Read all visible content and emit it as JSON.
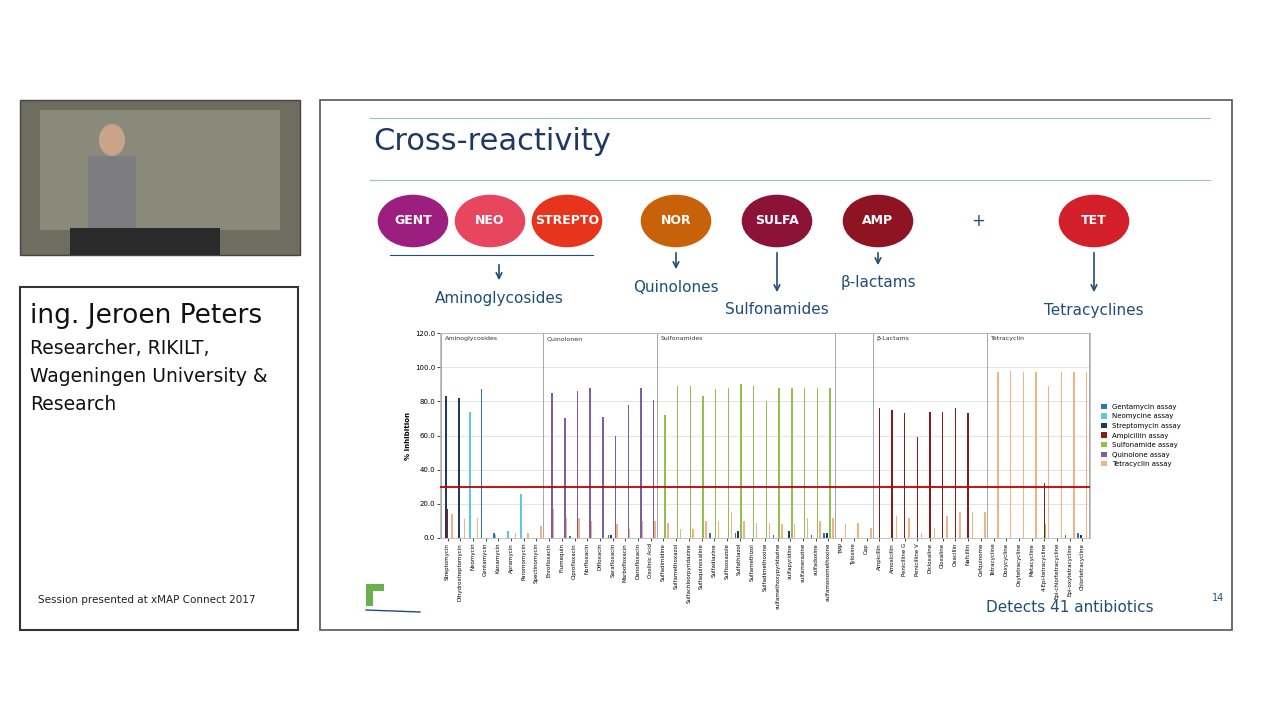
{
  "speaker": {
    "name": "ing. Jeroen Peters",
    "affiliation_lines": [
      "Researcher, RIKILT,",
      "Wageningen University &",
      "Research"
    ],
    "session": "Session presented at xMAP Connect 2017"
  },
  "slide": {
    "title": "Cross-reactivity",
    "assays": [
      {
        "label": "GENT",
        "color": "#9c1f80"
      },
      {
        "label": "NEO",
        "color": "#e8455e"
      },
      {
        "label": "STREPTO",
        "color": "#e8341c"
      },
      {
        "label": "NOR",
        "color": "#c8620a"
      },
      {
        "label": "SULFA",
        "color": "#8c1238"
      },
      {
        "label": "AMP",
        "color": "#8e1424"
      },
      {
        "label": "TET",
        "color": "#d21f2a"
      }
    ],
    "plus": "+",
    "classes": [
      {
        "label": "Aminoglycosides",
        "assays": [
          "GENT",
          "NEO",
          "STREPTO"
        ]
      },
      {
        "label": "Quinolones",
        "assays": [
          "NOR"
        ]
      },
      {
        "label": "Sulfonamides",
        "assays": [
          "SULFA"
        ]
      },
      {
        "label": "β-lactams",
        "assays": [
          "AMP"
        ]
      },
      {
        "label": "Tetracyclines",
        "assays": [
          "TET"
        ]
      }
    ],
    "footer": "Detects 41 antibiotics",
    "page": 14
  },
  "chart_data": {
    "type": "bar",
    "y_label": "% Inhibition",
    "categories": [
      "Streptomycin",
      "Dihydrostreptomycin",
      "Neomycin",
      "Gentamycin",
      "Kanamycin",
      "Apramycin",
      "Paromomycin",
      "Spectinomycin",
      "Enrofloxacin",
      "Flumequin",
      "Ciprofloxacin",
      "Norfloxacin",
      "Difloxacin",
      "Sarafloxacin",
      "Marbofloxacin",
      "Danofloxacin",
      "Oxolinic Acid",
      "Sulfadimidine",
      "Sulfamethoxazol",
      "Sulfachloorpyridazine",
      "Sulfaquinoxaline",
      "Sulfadiazine",
      "Sulfisoxazole",
      "Sulfathiazol",
      "Sulfamethizol",
      "Sulfadimethoxine",
      "sulfamethoxypyridazine",
      "sulfapyridine",
      "sulfamerazine",
      "sulfadoxine",
      "sulfamonomethoxine",
      "TMP",
      "Tylosine",
      "Cap",
      "Ampicillin",
      "Amoxicillin",
      "Penicilline G",
      "Penicilline V",
      "Dicloxaline",
      "Cloxaline",
      "Oxacillin",
      "Nafcillin",
      "Cefquinome",
      "Tetracycline",
      "Doxycycline",
      "Oxytetracycline",
      "Metacycline",
      "4-Epi-tetracycline",
      "Epi-chlortetracycline",
      "Epi-oxytetracycline",
      "Chlortetracycline"
    ],
    "groups": [
      {
        "label": "Aminoglycosides",
        "from": "Streptomycin",
        "to": "Spectinomycin"
      },
      {
        "label": "Quinolonen",
        "from": "Enrofloxacin",
        "to": "Oxolinic Acid"
      },
      {
        "label": "Sulfonamides",
        "from": "Sulfadimidine",
        "to": "sulfamonomethoxine"
      },
      {
        "label": "β-Lactams",
        "from": "Ampicillin",
        "to": "Cefquinome"
      },
      {
        "label": "Tetracyclin",
        "from": "Tetracycline",
        "to": "Chlortetracycline"
      }
    ],
    "series": [
      {
        "name": "Gentamycin assay",
        "color": "#2e75b6",
        "values": [
          0,
          0,
          0,
          87,
          3,
          0,
          0,
          0,
          0,
          0,
          1,
          0,
          0,
          2,
          0,
          0,
          0,
          0,
          0,
          0,
          0,
          3,
          0,
          3,
          0,
          0,
          2,
          0,
          0,
          2,
          3,
          0,
          0,
          0,
          0,
          0,
          0,
          0,
          0,
          0,
          0,
          0,
          0,
          0,
          0,
          0,
          0,
          0,
          0,
          2,
          3
        ]
      },
      {
        "name": "Neomycine assay",
        "color": "#5bc8e8",
        "values": [
          0,
          0,
          74,
          0,
          2,
          4,
          26,
          0,
          0,
          0,
          0,
          0,
          0,
          0,
          0,
          0,
          0,
          0,
          0,
          0,
          0,
          0,
          0,
          0,
          0,
          0,
          0,
          0,
          0,
          0,
          0,
          0,
          0,
          0,
          0,
          0,
          0,
          0,
          0,
          0,
          0,
          0,
          0,
          0,
          0,
          0,
          0,
          0,
          0,
          0,
          0
        ]
      },
      {
        "name": "Streptomycin assay",
        "color": "#1f3864",
        "values": [
          83,
          82,
          0,
          0,
          0,
          0,
          0,
          0,
          0,
          0,
          0,
          0,
          0,
          2,
          0,
          0,
          0,
          0,
          0,
          0,
          0,
          0,
          0,
          4,
          0,
          0,
          0,
          4,
          0,
          0,
          3,
          0,
          0,
          0,
          0,
          0,
          0,
          0,
          0,
          0,
          0,
          0,
          0,
          0,
          0,
          0,
          0,
          0,
          0,
          0,
          2
        ]
      },
      {
        "name": "Ampicillin assay",
        "color": "#8b1a1a",
        "values": [
          17,
          0,
          0,
          0,
          0,
          0,
          0,
          0,
          0,
          0,
          0,
          0,
          0,
          0,
          0,
          0,
          0,
          0,
          0,
          0,
          0,
          0,
          0,
          0,
          0,
          0,
          0,
          0,
          0,
          0,
          0,
          0,
          0,
          0,
          76,
          75,
          73,
          59,
          74,
          74,
          76,
          73,
          0,
          0,
          0,
          0,
          0,
          32,
          0,
          0,
          0
        ]
      },
      {
        "name": "Sulfonamide assay",
        "color": "#92c050",
        "values": [
          0,
          0,
          0,
          0,
          0,
          0,
          0,
          0,
          0,
          0,
          0,
          0,
          0,
          0,
          0,
          0,
          0,
          72,
          89,
          89,
          83,
          87,
          88,
          90,
          89,
          80,
          88,
          88,
          88,
          88,
          88,
          0,
          0,
          0,
          0,
          0,
          0,
          0,
          0,
          0,
          0,
          0,
          0,
          0,
          0,
          0,
          0,
          8,
          0,
          0,
          0
        ]
      },
      {
        "name": "Quinolone assay",
        "color": "#7b5ea7",
        "values": [
          0,
          0,
          0,
          0,
          0,
          0,
          0,
          0,
          85,
          70,
          86,
          88,
          71,
          60,
          78,
          88,
          81,
          0,
          0,
          0,
          0,
          0,
          0,
          0,
          0,
          0,
          0,
          0,
          0,
          0,
          0,
          0,
          0,
          0,
          0,
          0,
          0,
          0,
          0,
          0,
          0,
          0,
          0,
          0,
          0,
          0,
          0,
          0,
          0,
          0,
          0
        ]
      },
      {
        "name": "Tetracyclin assay",
        "color": "#f4b183",
        "values": [
          14,
          11,
          12,
          0,
          0,
          3,
          3,
          7,
          17,
          12,
          12,
          10,
          0,
          8,
          5,
          10,
          10,
          9,
          5,
          5,
          10,
          10,
          15,
          10,
          9,
          9,
          8,
          8,
          12,
          10,
          12,
          8,
          9,
          6,
          0,
          13,
          12,
          3,
          6,
          13,
          15,
          15,
          15,
          97,
          98,
          97,
          97,
          89,
          97,
          97,
          97
        ]
      }
    ],
    "threshold": 30,
    "ylim": [
      0,
      120
    ],
    "yticks": [
      {
        "value": 0,
        "label": "0.0"
      },
      {
        "value": 20,
        "label": "20.0"
      },
      {
        "value": 40,
        "label": "40.0"
      },
      {
        "value": 60,
        "label": "60.0"
      },
      {
        "value": 80,
        "label": "80.0"
      },
      {
        "value": 100,
        "label": "100.0"
      },
      {
        "value": 120,
        "label": "120.0"
      }
    ],
    "grid": true,
    "legend": "right"
  }
}
